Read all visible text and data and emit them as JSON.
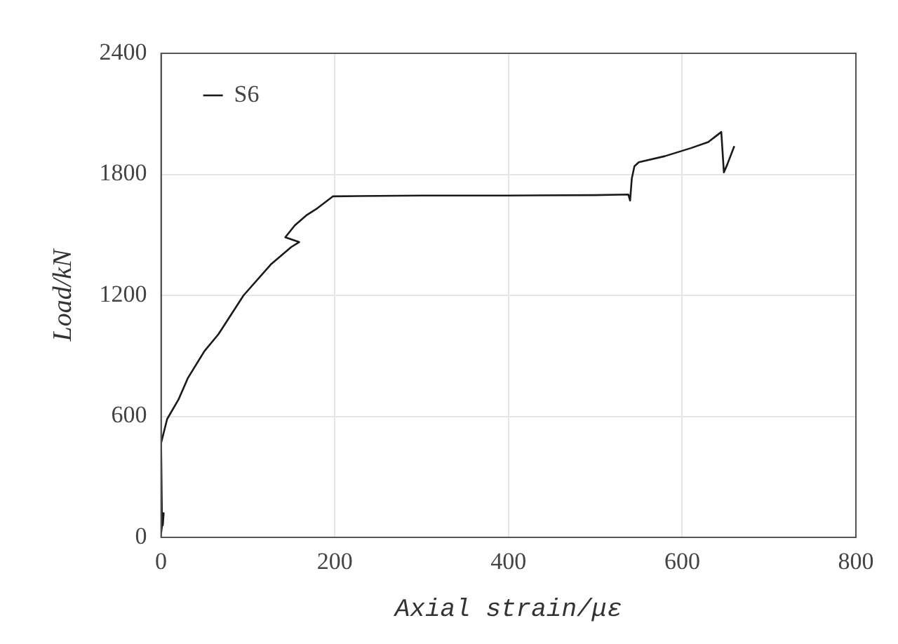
{
  "chart_data": {
    "type": "line",
    "xlabel": "Axial strain/με",
    "ylabel": "Load/kN",
    "xlim": [
      0,
      800
    ],
    "xticks": [
      0,
      200,
      400,
      600,
      800
    ],
    "ylim": [
      0,
      2400
    ],
    "yticks": [
      0,
      600,
      1200,
      1800,
      2400
    ],
    "grid": true,
    "legend": "top left",
    "marker": "none",
    "line_style": "solid",
    "series": [
      {
        "name": "S6",
        "color": "#1a1a1a",
        "x": [
          0,
          3,
          2,
          1,
          0,
          7,
          20,
          31,
          50,
          66,
          95,
          127,
          150,
          159,
          143,
          154,
          167,
          180,
          198,
          300,
          400,
          500,
          538,
          540,
          542,
          545,
          550,
          580,
          610,
          630,
          645,
          648,
          652,
          660
        ],
        "values": [
          20,
          120,
          60,
          100,
          467,
          587,
          683,
          791,
          924,
          1007,
          1200,
          1356,
          1440,
          1464,
          1488,
          1547,
          1596,
          1632,
          1691,
          1695,
          1695,
          1697,
          1700,
          1670,
          1780,
          1840,
          1860,
          1890,
          1930,
          1960,
          2010,
          1810,
          1850,
          1940
        ]
      }
    ]
  }
}
